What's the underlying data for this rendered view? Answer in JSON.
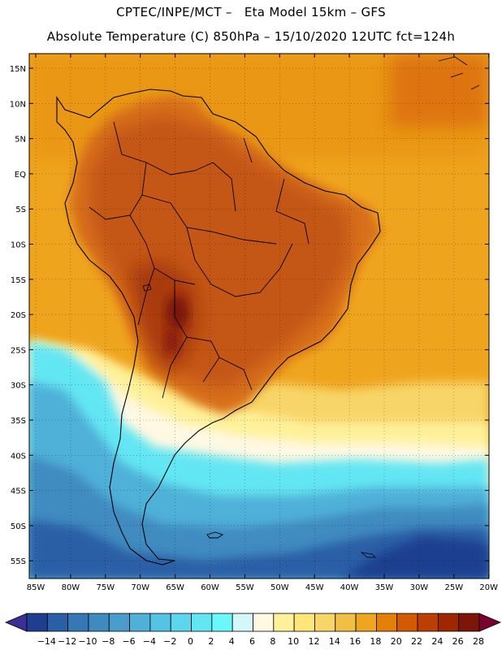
{
  "header": {
    "line1": "CPTEC/INPE/MCT –   Eta Model 15km – GFS",
    "line2": "Absolute Temperature (C) 850hPa – 15/10/2020 12UTC fct=124h"
  },
  "axes": {
    "lat_labels": [
      "15N",
      "10N",
      "5N",
      "EQ",
      "5S",
      "10S",
      "15S",
      "20S",
      "25S",
      "30S",
      "35S",
      "40S",
      "45S",
      "50S",
      "55S"
    ],
    "lon_labels": [
      "85W",
      "80W",
      "75W",
      "70W",
      "65W",
      "60W",
      "55W",
      "50W",
      "45W",
      "40W",
      "35W",
      "30W",
      "25W",
      "20W"
    ]
  },
  "legend": {
    "labels": [
      "-14",
      "-12",
      "-10",
      "-8",
      "-6",
      "-4",
      "-2",
      "0",
      "2",
      "4",
      "6",
      "8",
      "10",
      "12",
      "14",
      "16",
      "18",
      "20",
      "22",
      "24",
      "26",
      "28"
    ],
    "colors": [
      "#1e3f8f",
      "#2a5fa6",
      "#3578b5",
      "#3f8bc0",
      "#4a9ccb",
      "#50b0d8",
      "#55c3e3",
      "#5cd6ed",
      "#63e6f3",
      "#6af8fa",
      "#d3f7fb",
      "#fff8e3",
      "#fff19a",
      "#ffe57a",
      "#f8d567",
      "#f2bf45",
      "#efa61f",
      "#e47f08",
      "#d35a00",
      "#bb3f00",
      "#9e2700",
      "#7c1609"
    ],
    "min_color": "#3a2f95",
    "max_color": "#7a0030"
  },
  "map": {
    "ocean_color": "#efa41e",
    "land_color": "#c95a13"
  }
}
